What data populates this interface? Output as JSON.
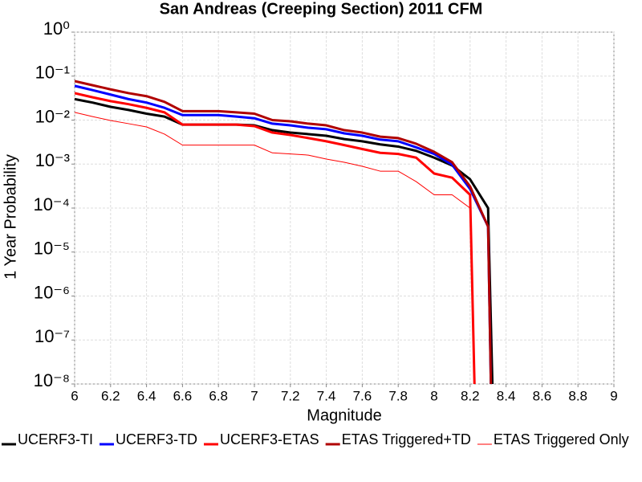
{
  "chart_data": {
    "type": "line",
    "title": "San Andreas (Creeping Section) 2011 CFM",
    "xlabel": "Magnitude",
    "ylabel": "1 Year Probability",
    "log_y": true,
    "grid": true,
    "xlim": [
      6,
      9
    ],
    "xticks": [
      6,
      6.2,
      6.4,
      6.6,
      6.8,
      7,
      7.2,
      7.4,
      7.6,
      7.8,
      8,
      8.2,
      8.4,
      8.6,
      8.8,
      9
    ],
    "ylim": [
      1e-08,
      1
    ],
    "yticks": [
      {
        "value": 1,
        "label": "10⁰"
      },
      {
        "value": 0.1,
        "label": "10⁻¹"
      },
      {
        "value": 0.01,
        "label": "10⁻²"
      },
      {
        "value": 0.001,
        "label": "10⁻³"
      },
      {
        "value": 0.0001,
        "label": "10⁻⁴"
      },
      {
        "value": 1e-05,
        "label": "10⁻⁵"
      },
      {
        "value": 1e-06,
        "label": "10⁻⁶"
      },
      {
        "value": 1e-07,
        "label": "10⁻⁷"
      },
      {
        "value": 1e-08,
        "label": "10⁻⁸"
      }
    ],
    "series": [
      {
        "name": "UCERF3-TI",
        "color": "#000000",
        "width": 3,
        "x": [
          6.0,
          6.1,
          6.2,
          6.3,
          6.4,
          6.5,
          6.6,
          6.7,
          6.8,
          6.9,
          7.0,
          7.1,
          7.2,
          7.3,
          7.4,
          7.5,
          7.6,
          7.7,
          7.8,
          7.9,
          8.0,
          8.1,
          8.2,
          8.3,
          8.33
        ],
        "values": [
          0.03,
          0.025,
          0.02,
          0.017,
          0.014,
          0.012,
          0.0079,
          0.0079,
          0.0079,
          0.0079,
          0.0076,
          0.0059,
          0.0052,
          0.0048,
          0.0044,
          0.0037,
          0.0033,
          0.0028,
          0.0025,
          0.002,
          0.0014,
          0.00093,
          0.00045,
          0.0001,
          1e-09
        ]
      },
      {
        "name": "UCERF3-TD",
        "color": "#0000ff",
        "width": 3,
        "x": [
          6.0,
          6.1,
          6.2,
          6.3,
          6.4,
          6.5,
          6.6,
          6.7,
          6.8,
          6.9,
          7.0,
          7.1,
          7.2,
          7.3,
          7.4,
          7.5,
          7.6,
          7.7,
          7.8,
          7.9,
          8.0,
          8.1,
          8.2,
          8.3,
          8.32
        ],
        "values": [
          0.06,
          0.048,
          0.038,
          0.03,
          0.025,
          0.019,
          0.013,
          0.013,
          0.013,
          0.012,
          0.011,
          0.0083,
          0.0076,
          0.0067,
          0.0062,
          0.005,
          0.0044,
          0.0036,
          0.0033,
          0.0024,
          0.0017,
          0.00097,
          0.00027,
          3.8e-05,
          1e-09
        ]
      },
      {
        "name": "UCERF3-ETAS",
        "color": "#ff0000",
        "width": 3,
        "x": [
          6.0,
          6.1,
          6.2,
          6.3,
          6.4,
          6.5,
          6.6,
          6.7,
          6.8,
          6.9,
          7.0,
          7.1,
          7.2,
          7.3,
          7.4,
          7.5,
          7.6,
          7.7,
          7.8,
          7.9,
          8.0,
          8.1,
          8.2,
          8.23
        ],
        "values": [
          0.041,
          0.033,
          0.027,
          0.023,
          0.019,
          0.015,
          0.0079,
          0.0079,
          0.0079,
          0.0079,
          0.0073,
          0.0052,
          0.0046,
          0.0039,
          0.0033,
          0.0027,
          0.0022,
          0.0018,
          0.0017,
          0.0014,
          0.00061,
          0.00049,
          0.0002,
          1e-09
        ]
      },
      {
        "name": "ETAS Triggered+TD",
        "color": "#b00000",
        "width": 3,
        "x": [
          6.0,
          6.1,
          6.2,
          6.3,
          6.4,
          6.5,
          6.6,
          6.7,
          6.8,
          6.9,
          7.0,
          7.1,
          7.2,
          7.3,
          7.4,
          7.5,
          7.6,
          7.7,
          7.8,
          7.9,
          8.0,
          8.1,
          8.2,
          8.3,
          8.32
        ],
        "values": [
          0.077,
          0.062,
          0.05,
          0.041,
          0.035,
          0.026,
          0.016,
          0.016,
          0.016,
          0.015,
          0.014,
          0.01,
          0.0094,
          0.0083,
          0.0076,
          0.0059,
          0.0052,
          0.0042,
          0.0039,
          0.0029,
          0.0019,
          0.0011,
          0.00031,
          3.8e-05,
          1e-09
        ]
      },
      {
        "name": "ETAS Triggered Only",
        "color": "#ff0000",
        "width": 1,
        "x": [
          6.0,
          6.1,
          6.2,
          6.3,
          6.4,
          6.5,
          6.6,
          6.7,
          6.8,
          6.9,
          7.0,
          7.1,
          7.2,
          7.3,
          7.4,
          7.5,
          7.6,
          7.7,
          7.8,
          7.9,
          8.0,
          8.1,
          8.2
        ],
        "values": [
          0.015,
          0.012,
          0.0098,
          0.0083,
          0.007,
          0.0048,
          0.0027,
          0.0027,
          0.0027,
          0.0027,
          0.0027,
          0.0018,
          0.0017,
          0.0016,
          0.0013,
          0.0011,
          0.00089,
          0.00069,
          0.00069,
          0.0004,
          0.0002,
          0.0002,
          0.0001
        ]
      }
    ]
  }
}
